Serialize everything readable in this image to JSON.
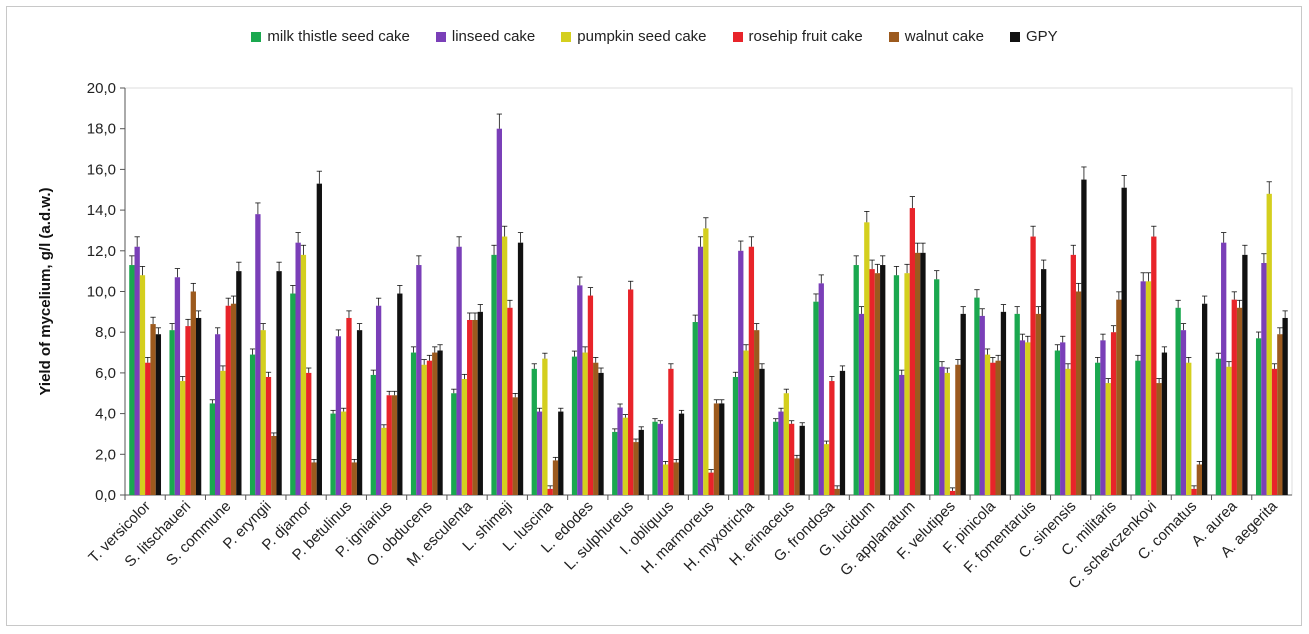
{
  "chart_data": {
    "type": "bar",
    "ylabel": "Yield of mycelium, g/l (a.d.w.)",
    "ylim": [
      0,
      20
    ],
    "yticks": [
      "0,0",
      "2,0",
      "4,0",
      "6,0",
      "8,0",
      "10,0",
      "12,0",
      "14,0",
      "16,0",
      "18,0",
      "20,0"
    ],
    "legend_position": "top",
    "categories": [
      "T. versicolor",
      "S. litschaueri",
      "S. commune",
      "P. eryngii",
      "P. djamor",
      "P. betulinus",
      "P. igniarius",
      "O. obducens",
      "M. esculenta",
      "L. shimeji",
      "L. luscina",
      "L. edodes",
      "L. sulphureus",
      "I. obliquus",
      "H. marmoreus",
      "H. myxotricha",
      "H. erinaceus",
      "G. frondosa",
      "G. lucidum",
      "G. applanatum",
      "F. velutipes",
      "F. pinicola",
      "F. fomentaruis",
      "C. sinensis",
      "C. militaris",
      "C. schevczenkovi",
      "C. comatus",
      "A. aurea",
      "A. aegerita"
    ],
    "series": [
      {
        "name": "milk thistle seed cake",
        "color": "#1aa84f",
        "values": [
          11.3,
          8.1,
          4.5,
          6.9,
          9.9,
          4.0,
          5.9,
          7.0,
          5.0,
          11.8,
          6.2,
          6.8,
          3.1,
          3.6,
          8.5,
          5.8,
          3.6,
          9.5,
          11.3,
          10.8,
          10.6,
          9.7,
          8.9,
          7.1,
          6.5,
          6.6,
          9.2,
          6.7,
          7.7
        ]
      },
      {
        "name": "linseed cake",
        "color": "#7a3fb8",
        "values": [
          12.2,
          10.7,
          7.9,
          13.8,
          12.4,
          7.8,
          9.3,
          11.3,
          12.2,
          18.0,
          4.1,
          10.3,
          4.3,
          3.5,
          12.2,
          12.0,
          4.1,
          10.4,
          8.9,
          5.9,
          6.3,
          8.8,
          7.6,
          7.5,
          7.6,
          10.5,
          8.1,
          12.4,
          11.4
        ]
      },
      {
        "name": "pumpkin seed cake",
        "color": "#d4cf1e",
        "values": [
          10.8,
          5.6,
          6.1,
          8.1,
          11.8,
          4.1,
          3.3,
          6.4,
          5.7,
          12.7,
          6.7,
          7.0,
          3.8,
          1.5,
          13.1,
          7.1,
          5.0,
          2.5,
          13.4,
          10.9,
          6.0,
          6.9,
          7.5,
          6.2,
          5.5,
          10.5,
          6.5,
          6.3,
          14.8
        ]
      },
      {
        "name": "rosehip fruit cake",
        "color": "#e8242a",
        "values": [
          6.5,
          8.3,
          9.3,
          5.8,
          6.0,
          8.7,
          4.9,
          6.6,
          8.6,
          9.2,
          0.3,
          9.8,
          10.1,
          6.2,
          1.1,
          12.2,
          3.5,
          5.6,
          11.1,
          14.1,
          0.2,
          6.5,
          12.7,
          11.8,
          8.0,
          12.7,
          0.3,
          9.6,
          6.2
        ]
      },
      {
        "name": "walnut cake",
        "color": "#9c5a1e",
        "values": [
          8.4,
          10.0,
          9.4,
          2.9,
          1.6,
          1.6,
          4.9,
          7.0,
          8.6,
          4.8,
          1.7,
          6.5,
          2.6,
          1.6,
          4.5,
          8.1,
          1.8,
          0.3,
          10.9,
          11.9,
          6.4,
          6.6,
          8.9,
          10.0,
          9.6,
          5.5,
          1.5,
          9.2,
          7.9
        ]
      },
      {
        "name": "GPY",
        "color": "#111111",
        "values": [
          7.9,
          8.7,
          11.0,
          11.0,
          15.3,
          8.1,
          9.9,
          7.1,
          9.0,
          12.4,
          4.1,
          6.0,
          3.2,
          4.0,
          4.5,
          6.2,
          3.4,
          6.1,
          11.3,
          11.9,
          8.9,
          9.0,
          11.1,
          15.5,
          15.1,
          7.0,
          9.4,
          11.8,
          8.7
        ]
      }
    ]
  }
}
